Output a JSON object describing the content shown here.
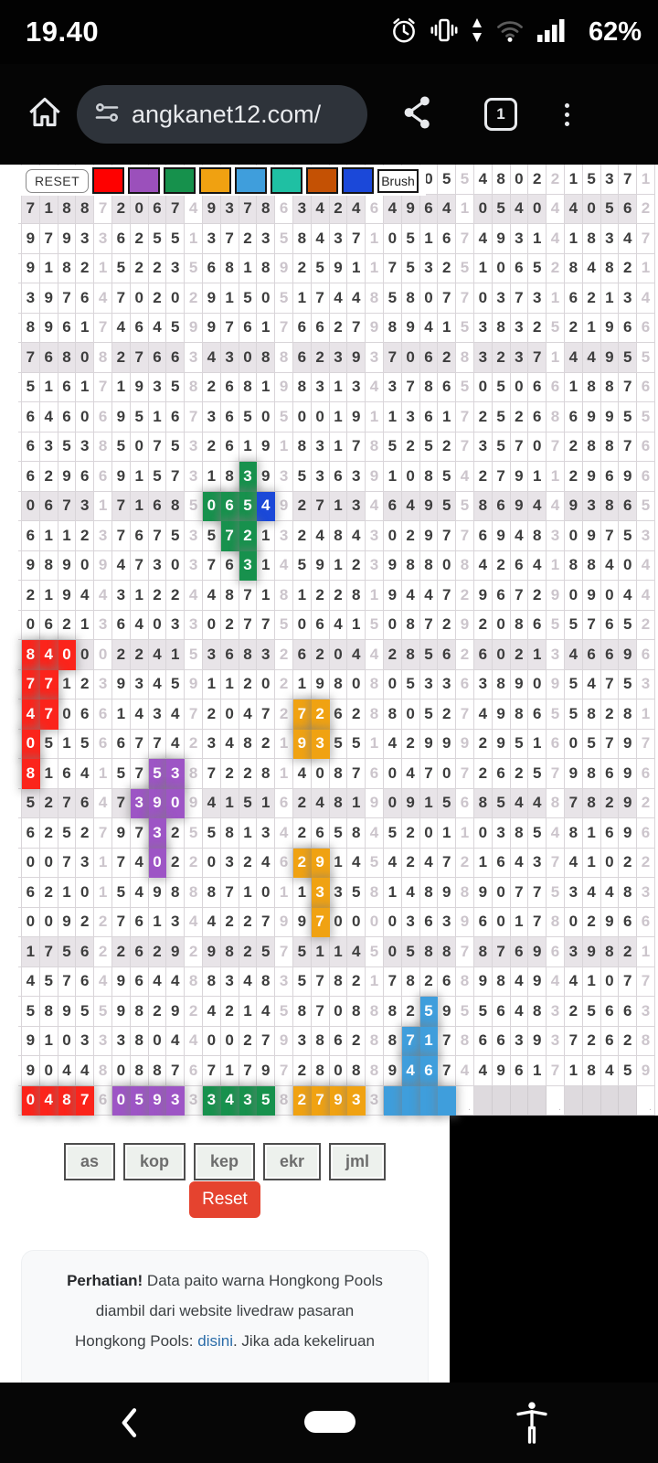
{
  "status_bar": {
    "time": "19.40",
    "battery": "62%"
  },
  "browser": {
    "url": "angkanet12.com/",
    "tab_count": "1"
  },
  "toolbar": {
    "reset": "RESET",
    "brush": "Brush",
    "swatches": [
      "#fe0100",
      "#9b50bb",
      "#16914c",
      "#f0a111",
      "#3f9edc",
      "#1fc0a3",
      "#c45104",
      "#1b48d9"
    ]
  },
  "grid": {
    "shade_rows": [
      1,
      6,
      11,
      16,
      21,
      26
    ],
    "highlight_colors": {
      "red": "#fb241b",
      "purple": "#9d55c5",
      "green": "#17914d",
      "orange": "#f0a212",
      "blue": "#3f9edc",
      "navy": "#1b49d8",
      "gray": "#dedade"
    },
    "rows": [
      {
        "g": [
          "____",
          "",
          "____",
          "",
          "____",
          "",
          "____",
          "",
          "__05",
          "5",
          "4802",
          "2",
          "1537",
          "1"
        ]
      },
      {
        "g": [
          "7188",
          "7",
          "2067",
          "4",
          "9378",
          "6",
          "3424",
          "6",
          "4964",
          "1",
          "0540",
          "4",
          "4056",
          "2"
        ]
      },
      {
        "g": [
          "9793",
          "3",
          "6255",
          "1",
          "3723",
          "5",
          "8437",
          "1",
          "0516",
          "7",
          "4931",
          "4",
          "1834",
          "7"
        ]
      },
      {
        "g": [
          "9182",
          "1",
          "5223",
          "5",
          "6818",
          "9",
          "2591",
          "1",
          "7532",
          "5",
          "1065",
          "2",
          "8482",
          "1"
        ]
      },
      {
        "g": [
          "3976",
          "4",
          "7020",
          "2",
          "9150",
          "5",
          "1744",
          "8",
          "5807",
          "7",
          "0373",
          "1",
          "6213",
          "4"
        ]
      },
      {
        "g": [
          "8961",
          "7",
          "4645",
          "9",
          "9761",
          "7",
          "6627",
          "9",
          "8941",
          "5",
          "3832",
          "5",
          "2196",
          "6"
        ]
      },
      {
        "g": [
          "7680",
          "8",
          "2766",
          "3",
          "4308",
          "8",
          "6239",
          "3",
          "7062",
          "8",
          "3237",
          "1",
          "4495",
          "5"
        ]
      },
      {
        "g": [
          "5161",
          "7",
          "1935",
          "8",
          "2681",
          "9",
          "8313",
          "4",
          "3786",
          "5",
          "0506",
          "6",
          "1887",
          "6"
        ]
      },
      {
        "g": [
          "6460",
          "6",
          "9516",
          "7",
          "3650",
          "5",
          "0019",
          "1",
          "1361",
          "7",
          "2526",
          "8",
          "6995",
          "5"
        ]
      },
      {
        "g": [
          "6353",
          "8",
          "5075",
          "3",
          "2619",
          "1",
          "8317",
          "8",
          "5252",
          "7",
          "3570",
          "7",
          "2887",
          "6"
        ]
      },
      {
        "g": [
          "6296",
          "6",
          "9157",
          "3",
          "1839",
          "3",
          "5363",
          "9",
          "1085",
          "4",
          "2791",
          "1",
          "2969",
          "6"
        ],
        "hl": {
          "12": "green"
        }
      },
      {
        "g": [
          "0673",
          "1",
          "7168",
          "5",
          "0654",
          "9",
          "2713",
          "4",
          "6495",
          "5",
          "8694",
          "4",
          "9386",
          "5"
        ],
        "hl": {
          "10": "green",
          "11": "green",
          "12": "green",
          "13": "navy"
        }
      },
      {
        "g": [
          "6112",
          "3",
          "7675",
          "3",
          "5721",
          "3",
          "2484",
          "3",
          "0297",
          "7",
          "6948",
          "3",
          "0975",
          "3"
        ],
        "hl": {
          "11": "green",
          "12": "green"
        }
      },
      {
        "g": [
          "9890",
          "9",
          "4730",
          "3",
          "7631",
          "4",
          "5912",
          "3",
          "9880",
          "8",
          "4264",
          "1",
          "8840",
          "4"
        ],
        "hl": {
          "12": "green"
        }
      },
      {
        "g": [
          "2194",
          "4",
          "3122",
          "4",
          "4871",
          "8",
          "1228",
          "1",
          "9447",
          "2",
          "9672",
          "9",
          "0904",
          "4"
        ]
      },
      {
        "g": [
          "0621",
          "3",
          "6403",
          "3",
          "0277",
          "5",
          "0641",
          "5",
          "0872",
          "9",
          "2086",
          "5",
          "5765",
          "2"
        ]
      },
      {
        "g": [
          "8400",
          "0",
          "2241",
          "5",
          "3683",
          "2",
          "6204",
          "4",
          "2856",
          "2",
          "6021",
          "3",
          "4669",
          "6"
        ],
        "hl": {
          "0": "red",
          "1": "red",
          "2": "red"
        }
      },
      {
        "g": [
          "7712",
          "3",
          "9345",
          "9",
          "1120",
          "2",
          "1980",
          "8",
          "0533",
          "6",
          "3890",
          "9",
          "5475",
          "3"
        ],
        "hl": {
          "0": "red",
          "1": "red"
        }
      },
      {
        "g": [
          "4706",
          "6",
          "1434",
          "7",
          "2047",
          "2",
          "7262",
          "8",
          "8052",
          "7",
          "4986",
          "5",
          "5828",
          "1"
        ],
        "hl": {
          "0": "red",
          "1": "red",
          "15": "orange",
          "16": "orange"
        }
      },
      {
        "g": [
          "0515",
          "6",
          "6774",
          "2",
          "3482",
          "1",
          "9355",
          "1",
          "4299",
          "9",
          "2951",
          "6",
          "0579",
          "7"
        ],
        "hl": {
          "0": "red",
          "15": "orange",
          "16": "orange"
        }
      },
      {
        "g": [
          "8164",
          "1",
          "5753",
          "8",
          "7228",
          "1",
          "4087",
          "6",
          "0470",
          "7",
          "2625",
          "7",
          "9869",
          "6"
        ],
        "hl": {
          "0": "red",
          "7": "purple",
          "8": "purple"
        }
      },
      {
        "g": [
          "5276",
          "4",
          "7390",
          "9",
          "4151",
          "6",
          "2481",
          "9",
          "0915",
          "6",
          "8544",
          "8",
          "7829",
          "2"
        ],
        "hl": {
          "6": "purple",
          "7": "purple",
          "8": "purple"
        }
      },
      {
        "g": [
          "6252",
          "7",
          "9732",
          "5",
          "5813",
          "4",
          "2658",
          "4",
          "5201",
          "1",
          "0385",
          "4",
          "8169",
          "6"
        ],
        "hl": {
          "7": "purple"
        }
      },
      {
        "g": [
          "0073",
          "1",
          "7402",
          "2",
          "0324",
          "6",
          "2914",
          "5",
          "4247",
          "2",
          "1643",
          "7",
          "4102",
          "2"
        ],
        "hl": {
          "7": "purple",
          "15": "orange",
          "16": "orange"
        }
      },
      {
        "g": [
          "6210",
          "1",
          "5498",
          "8",
          "8710",
          "1",
          "1335",
          "8",
          "1489",
          "8",
          "9077",
          "5",
          "3448",
          "3"
        ],
        "hl": {
          "16": "orange"
        }
      },
      {
        "g": [
          "0092",
          "2",
          "7613",
          "4",
          "4227",
          "9",
          "9700",
          "0",
          "0363",
          "9",
          "6017",
          "8",
          "0296",
          "6"
        ],
        "hl": {
          "16": "orange"
        }
      },
      {
        "g": [
          "1756",
          "2",
          "2629",
          "2",
          "9825",
          "7",
          "5114",
          "5",
          "0588",
          "7",
          "8769",
          "6",
          "3982",
          "1"
        ]
      },
      {
        "g": [
          "4576",
          "4",
          "9644",
          "8",
          "8348",
          "3",
          "5782",
          "1",
          "7826",
          "8",
          "9849",
          "4",
          "4107",
          "7"
        ]
      },
      {
        "g": [
          "5895",
          "5",
          "9829",
          "2",
          "4214",
          "5",
          "8708",
          "8",
          "8259",
          "5",
          "5648",
          "3",
          "2566",
          "3"
        ],
        "hl": {
          "22": "blue"
        }
      },
      {
        "g": [
          "9103",
          "3",
          "3804",
          "4",
          "0027",
          "9",
          "3862",
          "8",
          "8717",
          "8",
          "6639",
          "3",
          "7262",
          "8"
        ],
        "hl": {
          "21": "blue",
          "22": "blue"
        }
      },
      {
        "g": [
          "9044",
          "8",
          "0887",
          "6",
          "7179",
          "7",
          "2808",
          "8",
          "9467",
          "4",
          "4961",
          "7",
          "1845",
          "9"
        ],
        "hl": {
          "21": "blue",
          "22": "blue"
        }
      },
      {
        "g": [
          "0487",
          "6",
          "0593",
          "3",
          "3435",
          "8",
          "2793",
          "3",
          "____",
          ".",
          "____",
          ".",
          "____",
          "."
        ],
        "hl": {
          "0": "red",
          "1": "red",
          "2": "red",
          "3": "red",
          "5": "purple",
          "6": "purple",
          "7": "purple",
          "8": "purple",
          "10": "green",
          "11": "green",
          "12": "green",
          "13": "green",
          "15": "orange",
          "16": "orange",
          "17": "orange",
          "18": "orange",
          "20": "blue",
          "21": "blue",
          "22": "blue",
          "23": "blue",
          "25": "gray",
          "26": "gray",
          "27": "gray",
          "28": "gray",
          "30": "gray",
          "31": "gray",
          "32": "gray",
          "33": "gray"
        }
      }
    ]
  },
  "controls": {
    "buttons": [
      "as",
      "kop",
      "kep",
      "ekr",
      "jml"
    ],
    "reset": "Reset"
  },
  "notice": {
    "bold": "Perhatian!",
    "line1": " Data paito warna Hongkong Pools",
    "line2": "diambil dari website livedraw pasaran",
    "line3_pre": "Hongkong Pools: ",
    "link": "disini",
    "line3_post": ". Jika ada kekeliruan"
  }
}
